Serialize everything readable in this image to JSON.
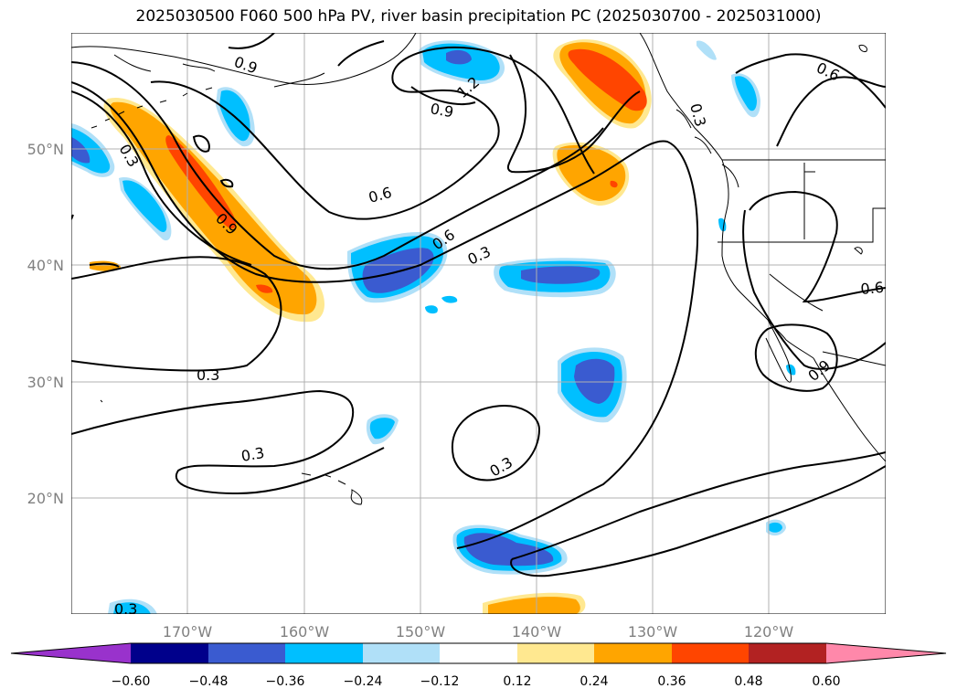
{
  "title": "2025030500 F060 500 hPa PV, river basin precipitation PC (2025030700 - 2025031000)",
  "lat_labels": [
    "50°N",
    "40°N",
    "30°N",
    "20°N"
  ],
  "lon_labels": [
    "170°W",
    "160°W",
    "150°W",
    "140°W",
    "130°W",
    "120°W"
  ],
  "contour_labels": [
    "0.9",
    "0.3",
    "0.9",
    "1.2",
    "0.9",
    "0.6",
    "0.6",
    "0.3",
    "0.3",
    "0.3",
    "0.3",
    "0.3",
    "0.6",
    "0.9",
    "0.6",
    "0.3"
  ],
  "colorbar": {
    "ticks": [
      "−0.60",
      "−0.48",
      "−0.36",
      "−0.24",
      "−0.12",
      "0.12",
      "0.24",
      "0.36",
      "0.48",
      "0.60"
    ],
    "colors": [
      "#9932cc",
      "#00008b",
      "#3a5bd0",
      "#00bfff",
      "#b0e0f8",
      "#ffffff",
      "#ffe890",
      "#ffa500",
      "#ff4500",
      "#b22222",
      "#ff88aa"
    ]
  },
  "colors": {
    "coast": "#000000",
    "grid": "#b0b0b0",
    "contour": "#000000"
  }
}
